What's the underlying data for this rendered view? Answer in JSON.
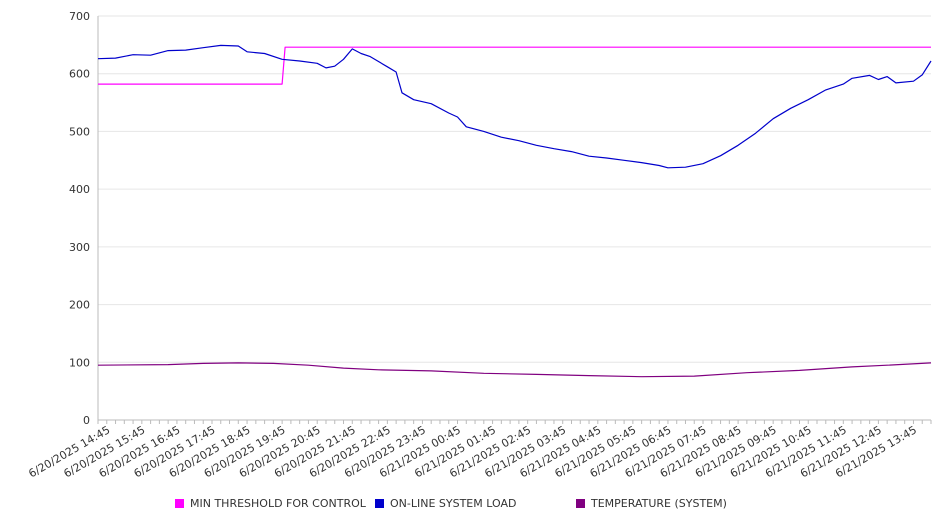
{
  "chart_data": {
    "type": "line",
    "y_ticks": [
      0,
      100,
      200,
      300,
      400,
      500,
      600,
      700
    ],
    "ylim": [
      0,
      700
    ],
    "x_range": [
      "6/20/2025 14:30",
      "6/21/2025 14:15"
    ],
    "x_tick_labels": [
      "6/20/2025 14:45",
      "6/20/2025 15:45",
      "6/20/2025 16:45",
      "6/20/2025 17:45",
      "6/20/2025 18:45",
      "6/20/2025 19:45",
      "6/20/2025 20:45",
      "6/20/2025 21:45",
      "6/20/2025 22:45",
      "6/20/2025 23:45",
      "6/21/2025 00:45",
      "6/21/2025 01:45",
      "6/21/2025 02:45",
      "6/21/2025 03:45",
      "6/21/2025 04:45",
      "6/21/2025 05:45",
      "6/21/2025 06:45",
      "6/21/2025 07:45",
      "6/21/2025 08:45",
      "6/21/2025 09:45",
      "6/21/2025 10:45",
      "6/21/2025 11:45",
      "6/21/2025 12:45",
      "6/21/2025 13:45"
    ],
    "grid": "horizontal",
    "legend_position": "bottom",
    "series": [
      {
        "name": "MIN THRESHOLD FOR CONTROL",
        "color": "#ff00ff",
        "points": [
          [
            "6/20/2025 14:30",
            582
          ],
          [
            "6/20/2025 19:45",
            582
          ],
          [
            "6/20/2025 19:50",
            646
          ],
          [
            "6/21/2025 14:15",
            646
          ]
        ]
      },
      {
        "name": "ON-LINE SYSTEM LOAD",
        "color": "#0000cc",
        "points": [
          [
            "6/20/2025 14:30",
            626
          ],
          [
            "6/20/2025 15:00",
            627
          ],
          [
            "6/20/2025 15:30",
            633
          ],
          [
            "6/20/2025 16:00",
            632
          ],
          [
            "6/20/2025 16:30",
            640
          ],
          [
            "6/20/2025 17:00",
            641
          ],
          [
            "6/20/2025 17:30",
            645
          ],
          [
            "6/20/2025 18:00",
            649
          ],
          [
            "6/20/2025 18:30",
            648
          ],
          [
            "6/20/2025 18:45",
            638
          ],
          [
            "6/20/2025 19:15",
            635
          ],
          [
            "6/20/2025 19:45",
            625
          ],
          [
            "6/20/2025 20:15",
            622
          ],
          [
            "6/20/2025 20:45",
            618
          ],
          [
            "6/20/2025 21:00",
            610
          ],
          [
            "6/20/2025 21:15",
            613
          ],
          [
            "6/20/2025 21:30",
            625
          ],
          [
            "6/20/2025 21:45",
            643
          ],
          [
            "6/20/2025 22:00",
            635
          ],
          [
            "6/20/2025 22:15",
            630
          ],
          [
            "6/20/2025 22:45",
            612
          ],
          [
            "6/20/2025 23:00",
            603
          ],
          [
            "6/20/2025 23:10",
            567
          ],
          [
            "6/20/2025 23:30",
            555
          ],
          [
            "6/21/2025 00:00",
            548
          ],
          [
            "6/21/2025 00:30",
            532
          ],
          [
            "6/21/2025 00:45",
            525
          ],
          [
            "6/21/2025 01:00",
            508
          ],
          [
            "6/21/2025 01:30",
            500
          ],
          [
            "6/21/2025 02:00",
            490
          ],
          [
            "6/21/2025 02:30",
            484
          ],
          [
            "6/21/2025 03:00",
            476
          ],
          [
            "6/21/2025 03:30",
            470
          ],
          [
            "6/21/2025 04:00",
            465
          ],
          [
            "6/21/2025 04:30",
            457
          ],
          [
            "6/21/2025 05:00",
            454
          ],
          [
            "6/21/2025 05:30",
            450
          ],
          [
            "6/21/2025 06:00",
            446
          ],
          [
            "6/21/2025 06:30",
            441
          ],
          [
            "6/21/2025 06:45",
            437
          ],
          [
            "6/21/2025 07:15",
            438
          ],
          [
            "6/21/2025 07:45",
            444
          ],
          [
            "6/21/2025 08:15",
            458
          ],
          [
            "6/21/2025 08:45",
            476
          ],
          [
            "6/21/2025 09:15",
            497
          ],
          [
            "6/21/2025 09:45",
            522
          ],
          [
            "6/21/2025 10:15",
            540
          ],
          [
            "6/21/2025 10:45",
            555
          ],
          [
            "6/21/2025 11:15",
            572
          ],
          [
            "6/21/2025 11:45",
            582
          ],
          [
            "6/21/2025 12:00",
            592
          ],
          [
            "6/21/2025 12:30",
            597
          ],
          [
            "6/21/2025 12:45",
            590
          ],
          [
            "6/21/2025 13:00",
            595
          ],
          [
            "6/21/2025 13:15",
            584
          ],
          [
            "6/21/2025 13:45",
            587
          ],
          [
            "6/21/2025 14:00",
            598
          ],
          [
            "6/21/2025 14:15",
            622
          ]
        ]
      },
      {
        "name": "TEMPERATURE (SYSTEM)",
        "color": "#800080",
        "points": [
          [
            "6/20/2025 14:30",
            95
          ],
          [
            "6/20/2025 16:30",
            96
          ],
          [
            "6/20/2025 17:30",
            98
          ],
          [
            "6/20/2025 18:30",
            99
          ],
          [
            "6/20/2025 19:30",
            98
          ],
          [
            "6/20/2025 20:30",
            95
          ],
          [
            "6/20/2025 21:30",
            90
          ],
          [
            "6/20/2025 22:30",
            87
          ],
          [
            "6/21/2025 00:00",
            85
          ],
          [
            "6/21/2025 01:30",
            81
          ],
          [
            "6/21/2025 03:00",
            79
          ],
          [
            "6/21/2025 04:30",
            77
          ],
          [
            "6/21/2025 06:00",
            75
          ],
          [
            "6/21/2025 07:30",
            76
          ],
          [
            "6/21/2025 09:00",
            82
          ],
          [
            "6/21/2025 10:30",
            86
          ],
          [
            "6/21/2025 12:00",
            92
          ],
          [
            "6/21/2025 13:00",
            95
          ],
          [
            "6/21/2025 14:15",
            99
          ]
        ]
      }
    ]
  }
}
